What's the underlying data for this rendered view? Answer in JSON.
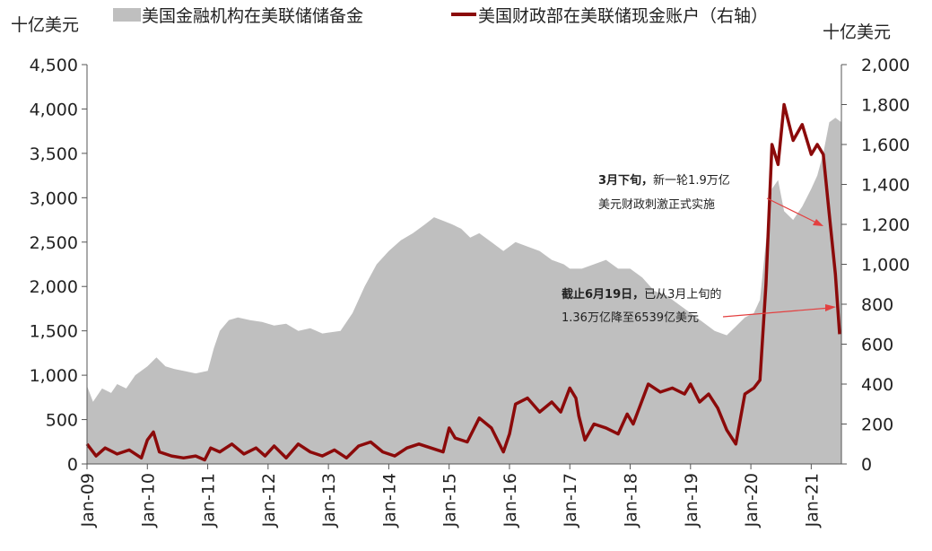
{
  "chart_data": {
    "type": "area+line",
    "left_axis_unit": "十亿美元",
    "right_axis_unit": "十亿美元",
    "yleft_ticks": [
      "0",
      "500",
      "1,000",
      "1,500",
      "2,000",
      "2,500",
      "3,000",
      "3,500",
      "4,000",
      "4,500"
    ],
    "yright_ticks": [
      "0",
      "200",
      "400",
      "600",
      "800",
      "1,000",
      "1,200",
      "1,400",
      "1,600",
      "1,800",
      "2,000"
    ],
    "yleft_lim": [
      0,
      4500
    ],
    "yright_lim": [
      0,
      2000
    ],
    "x_ticks": [
      "Jan-09",
      "Jan-10",
      "Jan-11",
      "Jan-12",
      "Jan-13",
      "Jan-14",
      "Jan-15",
      "Jan-16",
      "Jan-17",
      "Jan-18",
      "Jan-19",
      "Jan-20",
      "Jan-21"
    ],
    "xlim": [
      2009.0,
      2021.5
    ],
    "series": [
      {
        "name": "美国金融机构在美联储储备金",
        "axis": "left",
        "kind": "area",
        "color": "#bfbfbf",
        "x": [
          2009.0,
          2009.1,
          2009.25,
          2009.4,
          2009.5,
          2009.65,
          2009.8,
          2010.0,
          2010.15,
          2010.3,
          2010.45,
          2010.6,
          2010.8,
          2011.0,
          2011.1,
          2011.2,
          2011.35,
          2011.5,
          2011.7,
          2011.9,
          2012.1,
          2012.3,
          2012.5,
          2012.7,
          2012.9,
          2013.0,
          2013.2,
          2013.4,
          2013.6,
          2013.8,
          2014.0,
          2014.2,
          2014.4,
          2014.6,
          2014.75,
          2014.9,
          2015.05,
          2015.2,
          2015.35,
          2015.5,
          2015.7,
          2015.9,
          2016.1,
          2016.3,
          2016.5,
          2016.7,
          2016.9,
          2017.0,
          2017.2,
          2017.4,
          2017.6,
          2017.8,
          2018.0,
          2018.2,
          2018.4,
          2018.6,
          2018.8,
          2019.0,
          2019.2,
          2019.4,
          2019.6,
          2019.75,
          2019.9,
          2020.05,
          2020.15,
          2020.25,
          2020.35,
          2020.45,
          2020.55,
          2020.7,
          2020.85,
          2021.0,
          2021.1,
          2021.2,
          2021.3,
          2021.4,
          2021.5
        ],
        "values": [
          880,
          700,
          850,
          800,
          900,
          850,
          1000,
          1100,
          1200,
          1100,
          1070,
          1050,
          1020,
          1050,
          1300,
          1500,
          1620,
          1650,
          1620,
          1600,
          1560,
          1580,
          1500,
          1530,
          1470,
          1480,
          1500,
          1700,
          2000,
          2250,
          2400,
          2520,
          2600,
          2700,
          2780,
          2740,
          2700,
          2650,
          2550,
          2600,
          2500,
          2400,
          2500,
          2450,
          2400,
          2300,
          2250,
          2200,
          2200,
          2250,
          2300,
          2200,
          2200,
          2100,
          1950,
          1900,
          1800,
          1700,
          1600,
          1500,
          1450,
          1550,
          1650,
          1700,
          1850,
          2500,
          3100,
          3200,
          2850,
          2750,
          2900,
          3100,
          3250,
          3500,
          3850,
          3900,
          3850
        ]
      },
      {
        "name": "美国财政部在美联储现金账户（右轴）",
        "axis": "right",
        "kind": "line",
        "color": "#8b0a0a",
        "x": [
          2009.0,
          2009.15,
          2009.3,
          2009.5,
          2009.7,
          2009.9,
          2010.0,
          2010.1,
          2010.2,
          2010.4,
          2010.6,
          2010.8,
          2010.95,
          2011.05,
          2011.2,
          2011.4,
          2011.6,
          2011.8,
          2011.95,
          2012.1,
          2012.3,
          2012.5,
          2012.7,
          2012.9,
          2013.1,
          2013.3,
          2013.5,
          2013.7,
          2013.9,
          2014.1,
          2014.3,
          2014.5,
          2014.7,
          2014.9,
          2015.0,
          2015.1,
          2015.3,
          2015.5,
          2015.7,
          2015.9,
          2016.0,
          2016.1,
          2016.3,
          2016.5,
          2016.7,
          2016.85,
          2017.0,
          2017.1,
          2017.15,
          2017.25,
          2017.4,
          2017.6,
          2017.8,
          2017.95,
          2018.05,
          2018.15,
          2018.3,
          2018.5,
          2018.7,
          2018.9,
          2019.0,
          2019.15,
          2019.3,
          2019.45,
          2019.6,
          2019.75,
          2019.9,
          2020.05,
          2020.15,
          2020.25,
          2020.35,
          2020.45,
          2020.55,
          2020.7,
          2020.85,
          2021.0,
          2021.1,
          2021.2,
          2021.3,
          2021.4,
          2021.47
        ],
        "values": [
          100,
          40,
          80,
          50,
          70,
          30,
          120,
          160,
          60,
          40,
          30,
          40,
          20,
          80,
          60,
          100,
          50,
          80,
          40,
          90,
          30,
          100,
          60,
          40,
          70,
          30,
          90,
          110,
          60,
          40,
          80,
          100,
          80,
          60,
          180,
          130,
          110,
          230,
          180,
          60,
          150,
          300,
          330,
          260,
          310,
          260,
          380,
          330,
          240,
          120,
          200,
          180,
          150,
          250,
          200,
          280,
          400,
          360,
          380,
          350,
          400,
          310,
          350,
          280,
          170,
          100,
          350,
          380,
          420,
          900,
          1600,
          1500,
          1800,
          1620,
          1700,
          1550,
          1600,
          1550,
          1250,
          950,
          650
        ]
      }
    ],
    "annotations": [
      {
        "bold": "3月下旬，",
        "text": "新一轮1.9万亿",
        "line2": "美元财政刺激正式实施"
      },
      {
        "bold": "截止6月19日，",
        "text": "已从3月上旬的",
        "line2": "1.36万亿降至6539亿美元"
      }
    ]
  }
}
